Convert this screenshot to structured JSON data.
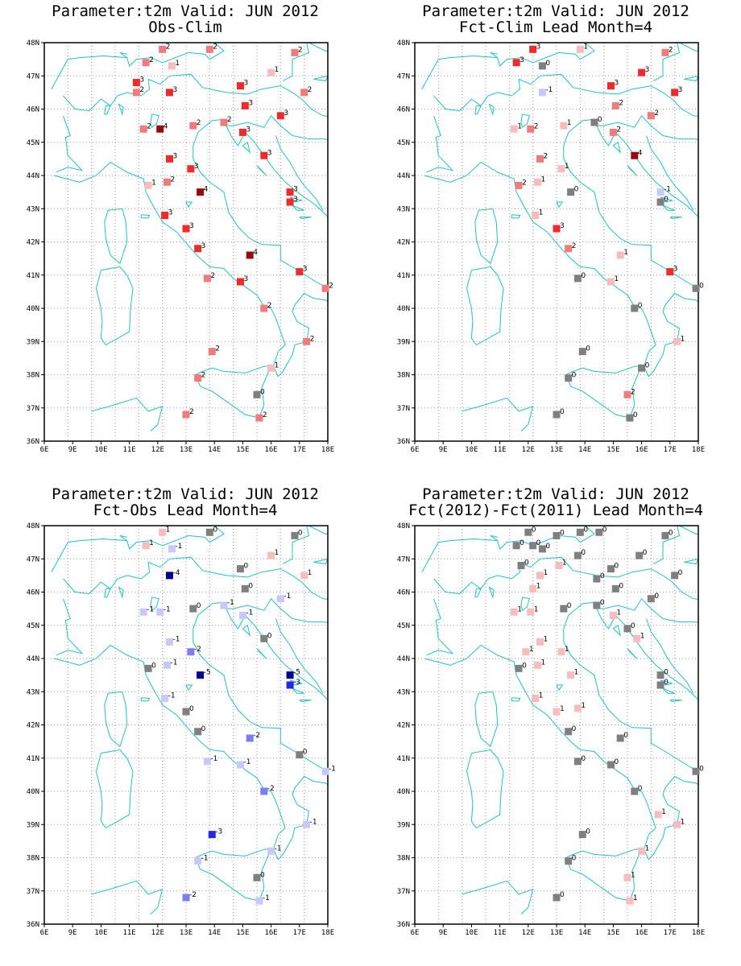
{
  "colors": {
    "coast": "#22c1c3",
    "grid": "#9a9a9a",
    "zero": "#7f7f7f",
    "pos1": "#f9bcbc",
    "pos2": "#f17a7a",
    "pos3": "#ee2a2a",
    "pos4": "#9b0a0a",
    "neg1": "#c8c8ff",
    "neg2": "#7c7cf7",
    "neg3": "#2626e8",
    "neg4": "#000090"
  },
  "chart_data": [
    {
      "type": "scatter",
      "title": "Parameter:t2m Valid: JUN 2012",
      "subtitle": "Obs-Clim",
      "xlim": [
        6,
        18
      ],
      "ylim": [
        36,
        48
      ],
      "xticks": [
        "6E",
        "9E",
        "10E",
        "11E",
        "12E",
        "13E",
        "14E",
        "15E",
        "16E",
        "17E",
        "18E"
      ],
      "yticks": [
        "36N",
        "37N",
        "38N",
        "39N",
        "40N",
        "41N",
        "42N",
        "43N",
        "44N",
        "45N",
        "46N",
        "47N",
        "48N"
      ],
      "points": [
        {
          "lon": 11.0,
          "lat": 47.8,
          "v": 2
        },
        {
          "lon": 13.0,
          "lat": 47.8,
          "v": 2
        },
        {
          "lon": 16.6,
          "lat": 47.7,
          "v": 2
        },
        {
          "lon": 10.3,
          "lat": 47.4,
          "v": 2
        },
        {
          "lon": 11.4,
          "lat": 47.3,
          "v": 1
        },
        {
          "lon": 15.6,
          "lat": 47.1,
          "v": 1
        },
        {
          "lon": 9.9,
          "lat": 46.8,
          "v": 3
        },
        {
          "lon": 9.9,
          "lat": 46.5,
          "v": 2
        },
        {
          "lon": 11.3,
          "lat": 46.5,
          "v": 3
        },
        {
          "lon": 14.3,
          "lat": 46.7,
          "v": 3
        },
        {
          "lon": 17.0,
          "lat": 46.5,
          "v": 2
        },
        {
          "lon": 14.5,
          "lat": 46.1,
          "v": 3
        },
        {
          "lon": 16.0,
          "lat": 45.8,
          "v": 3
        },
        {
          "lon": 13.6,
          "lat": 45.6,
          "v": 2
        },
        {
          "lon": 10.2,
          "lat": 45.4,
          "v": 2
        },
        {
          "lon": 10.9,
          "lat": 45.4,
          "v": 4
        },
        {
          "lon": 12.3,
          "lat": 45.5,
          "v": 2
        },
        {
          "lon": 14.4,
          "lat": 45.3,
          "v": 3
        },
        {
          "lon": 15.3,
          "lat": 44.6,
          "v": 3
        },
        {
          "lon": 11.3,
          "lat": 44.5,
          "v": 3
        },
        {
          "lon": 12.2,
          "lat": 44.2,
          "v": 3
        },
        {
          "lon": 11.2,
          "lat": 43.8,
          "v": 2
        },
        {
          "lon": 10.4,
          "lat": 43.7,
          "v": 1
        },
        {
          "lon": 12.6,
          "lat": 43.5,
          "v": 4
        },
        {
          "lon": 16.4,
          "lat": 43.5,
          "v": 3
        },
        {
          "lon": 16.4,
          "lat": 43.2,
          "v": 3
        },
        {
          "lon": 11.1,
          "lat": 42.8,
          "v": 3
        },
        {
          "lon": 12.0,
          "lat": 42.4,
          "v": 3
        },
        {
          "lon": 12.5,
          "lat": 41.8,
          "v": 3
        },
        {
          "lon": 14.7,
          "lat": 41.6,
          "v": 4
        },
        {
          "lon": 16.8,
          "lat": 41.1,
          "v": 3
        },
        {
          "lon": 14.3,
          "lat": 40.8,
          "v": 3
        },
        {
          "lon": 12.9,
          "lat": 40.9,
          "v": 2
        },
        {
          "lon": 17.9,
          "lat": 40.6,
          "v": 2
        },
        {
          "lon": 15.3,
          "lat": 40.0,
          "v": 2
        },
        {
          "lon": 17.1,
          "lat": 39.0,
          "v": 2
        },
        {
          "lon": 13.1,
          "lat": 38.7,
          "v": 2
        },
        {
          "lon": 15.6,
          "lat": 38.2,
          "v": 1
        },
        {
          "lon": 12.5,
          "lat": 37.9,
          "v": 2
        },
        {
          "lon": 15.0,
          "lat": 37.4,
          "v": 0
        },
        {
          "lon": 12.0,
          "lat": 36.8,
          "v": 2
        },
        {
          "lon": 15.1,
          "lat": 36.7,
          "v": 2
        }
      ]
    },
    {
      "type": "scatter",
      "title": "Parameter:t2m Valid: JUN 2012",
      "subtitle": "Fct-Clim Lead Month=4",
      "xlim": [
        6,
        18
      ],
      "ylim": [
        36,
        48
      ],
      "xticks": [
        "6E",
        "9E",
        "10E",
        "11E",
        "12E",
        "13E",
        "14E",
        "15E",
        "16E",
        "17E",
        "18E"
      ],
      "yticks": [
        "36N",
        "37N",
        "38N",
        "39N",
        "40N",
        "41N",
        "42N",
        "43N",
        "44N",
        "45N",
        "46N",
        "47N",
        "48N"
      ],
      "points": [
        {
          "lon": 11.0,
          "lat": 47.8,
          "v": 3
        },
        {
          "lon": 13.0,
          "lat": 47.8,
          "v": 1
        },
        {
          "lon": 16.6,
          "lat": 47.7,
          "v": 2
        },
        {
          "lon": 10.3,
          "lat": 47.4,
          "v": 3
        },
        {
          "lon": 11.4,
          "lat": 47.3,
          "v": 0
        },
        {
          "lon": 15.6,
          "lat": 47.1,
          "v": 3
        },
        {
          "lon": 14.3,
          "lat": 46.7,
          "v": 3
        },
        {
          "lon": 17.0,
          "lat": 46.5,
          "v": 3
        },
        {
          "lon": 11.4,
          "lat": 46.5,
          "v": -1
        },
        {
          "lon": 14.5,
          "lat": 46.1,
          "v": 2
        },
        {
          "lon": 16.0,
          "lat": 45.8,
          "v": 2
        },
        {
          "lon": 13.6,
          "lat": 45.6,
          "v": 0
        },
        {
          "lon": 10.2,
          "lat": 45.4,
          "v": 1
        },
        {
          "lon": 10.9,
          "lat": 45.4,
          "v": 2
        },
        {
          "lon": 12.3,
          "lat": 45.5,
          "v": 1
        },
        {
          "lon": 14.4,
          "lat": 45.3,
          "v": 2
        },
        {
          "lon": 15.3,
          "lat": 44.6,
          "v": 4
        },
        {
          "lon": 11.3,
          "lat": 44.5,
          "v": 2
        },
        {
          "lon": 12.2,
          "lat": 44.2,
          "v": 1
        },
        {
          "lon": 11.2,
          "lat": 43.8,
          "v": 1
        },
        {
          "lon": 10.4,
          "lat": 43.7,
          "v": 2
        },
        {
          "lon": 12.6,
          "lat": 43.5,
          "v": 0
        },
        {
          "lon": 16.4,
          "lat": 43.5,
          "v": -1
        },
        {
          "lon": 16.4,
          "lat": 43.2,
          "v": 0
        },
        {
          "lon": 11.1,
          "lat": 42.8,
          "v": 1
        },
        {
          "lon": 12.0,
          "lat": 42.4,
          "v": 3
        },
        {
          "lon": 12.5,
          "lat": 41.8,
          "v": 2
        },
        {
          "lon": 14.7,
          "lat": 41.6,
          "v": 1
        },
        {
          "lon": 16.8,
          "lat": 41.1,
          "v": 3
        },
        {
          "lon": 12.9,
          "lat": 40.9,
          "v": 0
        },
        {
          "lon": 14.3,
          "lat": 40.8,
          "v": 1
        },
        {
          "lon": 17.9,
          "lat": 40.6,
          "v": 0
        },
        {
          "lon": 15.3,
          "lat": 40.0,
          "v": 0
        },
        {
          "lon": 17.1,
          "lat": 39.0,
          "v": 1
        },
        {
          "lon": 13.1,
          "lat": 38.7,
          "v": 0
        },
        {
          "lon": 15.6,
          "lat": 38.2,
          "v": 0
        },
        {
          "lon": 12.5,
          "lat": 37.9,
          "v": 0
        },
        {
          "lon": 15.0,
          "lat": 37.4,
          "v": 2
        },
        {
          "lon": 12.0,
          "lat": 36.8,
          "v": 0
        },
        {
          "lon": 15.1,
          "lat": 36.7,
          "v": 0
        }
      ]
    },
    {
      "type": "scatter",
      "title": "Parameter:t2m Valid: JUN 2012",
      "subtitle": "Fct-Obs Lead Month=4",
      "xlim": [
        6,
        18
      ],
      "ylim": [
        36,
        48
      ],
      "xticks": [
        "6E",
        "9E",
        "10E",
        "11E",
        "12E",
        "13E",
        "14E",
        "15E",
        "16E",
        "17E",
        "18E"
      ],
      "yticks": [
        "36N",
        "37N",
        "38N",
        "39N",
        "40N",
        "41N",
        "42N",
        "43N",
        "44N",
        "45N",
        "46N",
        "47N",
        "48N"
      ],
      "points": [
        {
          "lon": 11.0,
          "lat": 47.8,
          "v": 1
        },
        {
          "lon": 13.0,
          "lat": 47.8,
          "v": 0
        },
        {
          "lon": 16.6,
          "lat": 47.7,
          "v": 0
        },
        {
          "lon": 10.3,
          "lat": 47.4,
          "v": 1
        },
        {
          "lon": 11.4,
          "lat": 47.3,
          "v": -1
        },
        {
          "lon": 15.6,
          "lat": 47.1,
          "v": 1
        },
        {
          "lon": 14.3,
          "lat": 46.7,
          "v": 0
        },
        {
          "lon": 17.0,
          "lat": 46.5,
          "v": 1
        },
        {
          "lon": 11.3,
          "lat": 46.5,
          "v": -4
        },
        {
          "lon": 14.5,
          "lat": 46.1,
          "v": 0
        },
        {
          "lon": 16.0,
          "lat": 45.8,
          "v": -1
        },
        {
          "lon": 13.6,
          "lat": 45.6,
          "v": -1
        },
        {
          "lon": 10.2,
          "lat": 45.4,
          "v": -1
        },
        {
          "lon": 10.9,
          "lat": 45.4,
          "v": -1
        },
        {
          "lon": 12.3,
          "lat": 45.5,
          "v": 0
        },
        {
          "lon": 14.4,
          "lat": 45.3,
          "v": -1
        },
        {
          "lon": 15.3,
          "lat": 44.6,
          "v": 0
        },
        {
          "lon": 11.3,
          "lat": 44.5,
          "v": -1
        },
        {
          "lon": 12.2,
          "lat": 44.2,
          "v": -2
        },
        {
          "lon": 11.2,
          "lat": 43.8,
          "v": -1
        },
        {
          "lon": 10.4,
          "lat": 43.7,
          "v": 0
        },
        {
          "lon": 12.6,
          "lat": 43.5,
          "v": -5
        },
        {
          "lon": 16.4,
          "lat": 43.5,
          "v": -5
        },
        {
          "lon": 16.4,
          "lat": 43.2,
          "v": -3
        },
        {
          "lon": 11.1,
          "lat": 42.8,
          "v": -1
        },
        {
          "lon": 12.0,
          "lat": 42.4,
          "v": 0
        },
        {
          "lon": 12.5,
          "lat": 41.8,
          "v": 0
        },
        {
          "lon": 14.7,
          "lat": 41.6,
          "v": -2
        },
        {
          "lon": 16.8,
          "lat": 41.1,
          "v": 0
        },
        {
          "lon": 12.9,
          "lat": 40.9,
          "v": -1
        },
        {
          "lon": 14.3,
          "lat": 40.8,
          "v": -1
        },
        {
          "lon": 17.9,
          "lat": 40.6,
          "v": -1
        },
        {
          "lon": 15.3,
          "lat": 40.0,
          "v": -2
        },
        {
          "lon": 17.1,
          "lat": 39.0,
          "v": -1
        },
        {
          "lon": 13.1,
          "lat": 38.7,
          "v": -3
        },
        {
          "lon": 15.6,
          "lat": 38.2,
          "v": -1
        },
        {
          "lon": 12.5,
          "lat": 37.9,
          "v": -1
        },
        {
          "lon": 15.0,
          "lat": 37.4,
          "v": 0
        },
        {
          "lon": 12.0,
          "lat": 36.8,
          "v": -2
        },
        {
          "lon": 15.1,
          "lat": 36.7,
          "v": -1
        }
      ]
    },
    {
      "type": "scatter",
      "title": "Parameter:t2m Valid: JUN 2012",
      "subtitle": "Fct(2012)-Fct(2011) Lead Month=4",
      "xlim": [
        6,
        18
      ],
      "ylim": [
        36,
        48
      ],
      "xticks": [
        "6E",
        "9E",
        "10E",
        "11E",
        "12E",
        "13E",
        "14E",
        "15E",
        "16E",
        "17E",
        "18E"
      ],
      "yticks": [
        "36N",
        "37N",
        "38N",
        "39N",
        "40N",
        "41N",
        "42N",
        "43N",
        "44N",
        "45N",
        "46N",
        "47N",
        "48N"
      ],
      "points": [
        {
          "lon": 10.8,
          "lat": 47.8,
          "v": 0
        },
        {
          "lon": 12.0,
          "lat": 47.7,
          "v": 0
        },
        {
          "lon": 13.0,
          "lat": 47.8,
          "v": 0
        },
        {
          "lon": 13.8,
          "lat": 47.8,
          "v": 0
        },
        {
          "lon": 16.6,
          "lat": 47.7,
          "v": 0
        },
        {
          "lon": 10.3,
          "lat": 47.4,
          "v": 0
        },
        {
          "lon": 11.0,
          "lat": 47.4,
          "v": 0
        },
        {
          "lon": 11.4,
          "lat": 47.3,
          "v": 0
        },
        {
          "lon": 12.9,
          "lat": 47.1,
          "v": 0
        },
        {
          "lon": 15.5,
          "lat": 47.1,
          "v": 0
        },
        {
          "lon": 10.5,
          "lat": 46.8,
          "v": 0
        },
        {
          "lon": 12.1,
          "lat": 46.8,
          "v": 1
        },
        {
          "lon": 14.3,
          "lat": 46.7,
          "v": 0
        },
        {
          "lon": 11.3,
          "lat": 46.5,
          "v": 1
        },
        {
          "lon": 17.0,
          "lat": 46.5,
          "v": 0
        },
        {
          "lon": 13.7,
          "lat": 46.4,
          "v": 0
        },
        {
          "lon": 11.0,
          "lat": 46.1,
          "v": 1
        },
        {
          "lon": 14.5,
          "lat": 46.1,
          "v": 0
        },
        {
          "lon": 16.0,
          "lat": 45.8,
          "v": 0
        },
        {
          "lon": 13.7,
          "lat": 45.6,
          "v": 0
        },
        {
          "lon": 10.2,
          "lat": 45.4,
          "v": 1
        },
        {
          "lon": 10.9,
          "lat": 45.4,
          "v": 1
        },
        {
          "lon": 12.3,
          "lat": 45.5,
          "v": 0
        },
        {
          "lon": 14.4,
          "lat": 45.3,
          "v": 1
        },
        {
          "lon": 15.0,
          "lat": 44.9,
          "v": 0
        },
        {
          "lon": 15.4,
          "lat": 44.6,
          "v": 1
        },
        {
          "lon": 11.3,
          "lat": 44.5,
          "v": 1
        },
        {
          "lon": 10.7,
          "lat": 44.2,
          "v": 1
        },
        {
          "lon": 12.2,
          "lat": 44.2,
          "v": 1
        },
        {
          "lon": 11.2,
          "lat": 43.8,
          "v": 1
        },
        {
          "lon": 10.4,
          "lat": 43.7,
          "v": 0
        },
        {
          "lon": 12.6,
          "lat": 43.5,
          "v": 1
        },
        {
          "lon": 16.4,
          "lat": 43.5,
          "v": 0
        },
        {
          "lon": 16.4,
          "lat": 43.2,
          "v": 0
        },
        {
          "lon": 11.1,
          "lat": 42.8,
          "v": 1
        },
        {
          "lon": 12.0,
          "lat": 42.4,
          "v": 1
        },
        {
          "lon": 12.9,
          "lat": 42.5,
          "v": 1
        },
        {
          "lon": 12.5,
          "lat": 41.8,
          "v": 0
        },
        {
          "lon": 14.7,
          "lat": 41.6,
          "v": 0
        },
        {
          "lon": 12.9,
          "lat": 40.9,
          "v": 0
        },
        {
          "lon": 14.3,
          "lat": 40.8,
          "v": 0
        },
        {
          "lon": 17.9,
          "lat": 40.6,
          "v": 0
        },
        {
          "lon": 15.3,
          "lat": 40.0,
          "v": 0
        },
        {
          "lon": 16.3,
          "lat": 39.3,
          "v": 1
        },
        {
          "lon": 17.1,
          "lat": 39.0,
          "v": 1
        },
        {
          "lon": 13.1,
          "lat": 38.7,
          "v": 0
        },
        {
          "lon": 15.6,
          "lat": 38.2,
          "v": 1
        },
        {
          "lon": 12.5,
          "lat": 37.9,
          "v": 0
        },
        {
          "lon": 15.0,
          "lat": 37.4,
          "v": 1
        },
        {
          "lon": 12.0,
          "lat": 36.8,
          "v": 0
        },
        {
          "lon": 15.1,
          "lat": 36.7,
          "v": 1
        }
      ]
    }
  ]
}
